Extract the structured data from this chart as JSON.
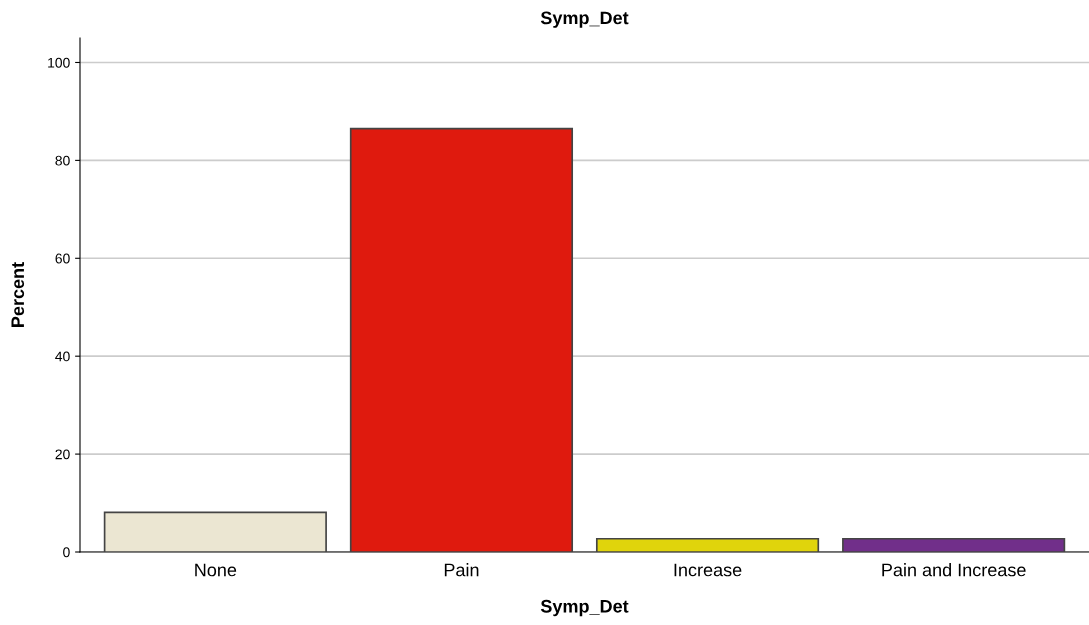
{
  "chart_data": {
    "type": "bar",
    "title": "Symp_Det",
    "xlabel": "Symp_Det",
    "ylabel": "Percent",
    "categories": [
      "None",
      "Pain",
      "Increase",
      "Pain and Increase"
    ],
    "values": [
      8.1,
      86.5,
      2.7,
      2.7
    ],
    "colors": [
      "#ebe6d2",
      "#df1a0e",
      "#e0d40c",
      "#712f8a"
    ],
    "ylim": [
      0,
      105
    ],
    "yticks": [
      0,
      20,
      40,
      60,
      80,
      100
    ],
    "grid": "y",
    "legend": false
  }
}
